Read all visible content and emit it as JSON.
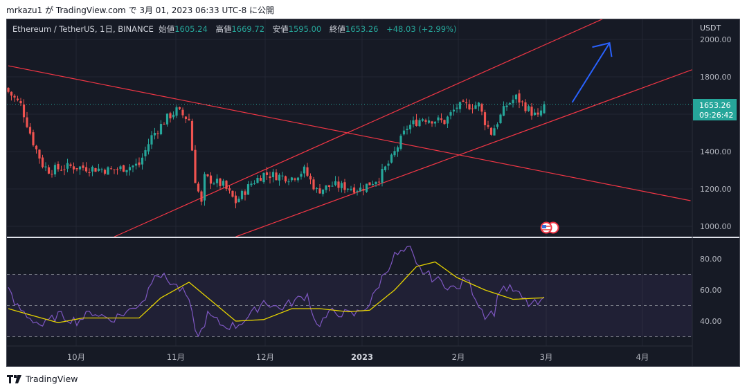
{
  "publish_line": "mrkazu1 が TradingView.com で 3月 01, 2023 06:33 UTC-8 に公開",
  "legend": {
    "symbol": "Ethereum / TetherUS, 1日, BINANCE",
    "open_label": "始値",
    "open": "1605.24",
    "high_label": "高値",
    "high": "1669.72",
    "low_label": "安値",
    "low": "1595.00",
    "close_label": "終値",
    "close": "1653.26",
    "change": "+48.03 (+2.99%)"
  },
  "price_axis": {
    "currency": "USDT",
    "ticks": [
      "2000.00",
      "1800.00",
      "1400.00",
      "1200.00",
      "1000.00"
    ],
    "last_price": "1653.26",
    "countdown": "09:26:42"
  },
  "rsi_axis": {
    "ticks": [
      "80.00",
      "60.00",
      "40.00"
    ]
  },
  "time_axis": {
    "labels": [
      "10月",
      "11月",
      "12月",
      "2023",
      "2月",
      "3月",
      "4月"
    ]
  },
  "footer": {
    "brand": "TradingView"
  },
  "colors": {
    "bg": "#161a25",
    "up": "#26a69a",
    "down": "#ef5350",
    "trendline": "#f23645",
    "arrow": "#2962ff",
    "rsi": "#7e57c2",
    "rsi_ma": "#e6d300"
  },
  "chart_data": {
    "type": "candlestick",
    "title": "Ethereum / TetherUS, 1D, BINANCE",
    "x_unit": "day index from ~Sep 9 2022 (day 22 = Oct 1, day 172 = Mar 1)",
    "ylim": [
      950,
      2080
    ],
    "close_keypoints": [
      [
        0,
        1720
      ],
      [
        4,
        1650
      ],
      [
        8,
        1450
      ],
      [
        11,
        1330
      ],
      [
        13,
        1300
      ],
      [
        20,
        1320
      ],
      [
        27,
        1310
      ],
      [
        33,
        1300
      ],
      [
        42,
        1330
      ],
      [
        46,
        1480
      ],
      [
        51,
        1580
      ],
      [
        54,
        1620
      ],
      [
        58,
        1570
      ],
      [
        60,
        1250
      ],
      [
        62,
        1120
      ],
      [
        63,
        1260
      ],
      [
        69,
        1220
      ],
      [
        73,
        1130
      ],
      [
        78,
        1230
      ],
      [
        82,
        1280
      ],
      [
        91,
        1260
      ],
      [
        95,
        1300
      ],
      [
        99,
        1190
      ],
      [
        104,
        1220
      ],
      [
        113,
        1200
      ],
      [
        119,
        1260
      ],
      [
        123,
        1360
      ],
      [
        128,
        1530
      ],
      [
        133,
        1580
      ],
      [
        140,
        1560
      ],
      [
        144,
        1640
      ],
      [
        151,
        1650
      ],
      [
        153,
        1560
      ],
      [
        155,
        1500
      ],
      [
        160,
        1650
      ],
      [
        163,
        1690
      ],
      [
        166,
        1640
      ],
      [
        170,
        1580
      ],
      [
        172,
        1653
      ]
    ],
    "trendlines": [
      {
        "name": "descending-resistance",
        "p1": [
          0,
          1859
        ],
        "p2": [
          219,
          1137
        ]
      },
      {
        "name": "channel-upper",
        "p1": [
          34,
          944
        ],
        "p2": [
          191,
          2111
        ]
      },
      {
        "name": "channel-lower",
        "p1": [
          73,
          944
        ],
        "p2": [
          220,
          1841
        ]
      }
    ],
    "arrow": {
      "from": [
        181,
        1663
      ],
      "to": [
        193,
        1981
      ]
    },
    "rsi": {
      "levels": [
        70,
        50,
        30
      ],
      "ylim": [
        25,
        92
      ],
      "rsi_keypoints": [
        [
          0,
          60
        ],
        [
          2,
          51
        ],
        [
          7,
          42
        ],
        [
          11,
          37
        ],
        [
          16,
          44
        ],
        [
          22,
          40
        ],
        [
          27,
          46
        ],
        [
          33,
          41
        ],
        [
          40,
          48
        ],
        [
          44,
          55
        ],
        [
          47,
          72
        ],
        [
          50,
          68
        ],
        [
          53,
          64
        ],
        [
          57,
          57
        ],
        [
          58,
          51
        ],
        [
          61,
          29
        ],
        [
          64,
          44
        ],
        [
          69,
          37
        ],
        [
          73,
          37
        ],
        [
          78,
          44
        ],
        [
          82,
          53
        ],
        [
          87,
          48
        ],
        [
          96,
          57
        ],
        [
          99,
          37
        ],
        [
          104,
          46
        ],
        [
          111,
          44
        ],
        [
          116,
          51
        ],
        [
          120,
          68
        ],
        [
          124,
          82
        ],
        [
          129,
          86
        ],
        [
          131,
          75
        ],
        [
          136,
          68
        ],
        [
          140,
          64
        ],
        [
          144,
          60
        ],
        [
          147,
          68
        ],
        [
          151,
          51
        ],
        [
          153,
          44
        ],
        [
          156,
          46
        ],
        [
          158,
          62
        ],
        [
          162,
          60
        ],
        [
          167,
          51
        ],
        [
          171,
          51
        ],
        [
          172,
          55
        ]
      ],
      "ma_keypoints": [
        [
          0,
          48
        ],
        [
          7,
          44
        ],
        [
          16,
          39
        ],
        [
          24,
          42
        ],
        [
          33,
          42
        ],
        [
          42,
          42
        ],
        [
          49,
          55
        ],
        [
          58,
          65
        ],
        [
          64,
          55
        ],
        [
          73,
          40
        ],
        [
          82,
          41
        ],
        [
          91,
          48
        ],
        [
          100,
          48
        ],
        [
          109,
          46
        ],
        [
          116,
          47
        ],
        [
          124,
          60
        ],
        [
          131,
          75
        ],
        [
          137,
          78
        ],
        [
          144,
          68
        ],
        [
          153,
          60
        ],
        [
          162,
          54
        ],
        [
          172,
          55
        ]
      ]
    }
  }
}
